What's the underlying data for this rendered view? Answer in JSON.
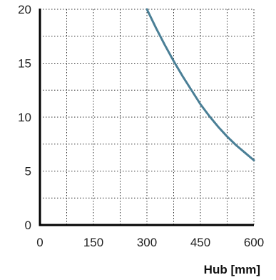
{
  "chart_data": {
    "type": "line",
    "xlabel": "Hub [mm]",
    "ylabel": "",
    "xlim": [
      0,
      600
    ],
    "ylim": [
      0,
      20
    ],
    "x_ticks": [
      "0",
      "150",
      "300",
      "450",
      "600"
    ],
    "y_ticks": [
      "0",
      "5",
      "10",
      "15",
      "20"
    ],
    "x_minor_step": 75,
    "y_minor_step": 2.5,
    "grid": true,
    "series": [
      {
        "color": "#4a7f96",
        "x": [
          300,
          325,
          350,
          375,
          400,
          425,
          450,
          475,
          500,
          525,
          550,
          575,
          600
        ],
        "y": [
          20.0,
          18.3,
          16.7,
          15.2,
          13.8,
          12.5,
          11.2,
          10.1,
          9.1,
          8.2,
          7.4,
          6.7,
          6.0
        ]
      }
    ]
  }
}
